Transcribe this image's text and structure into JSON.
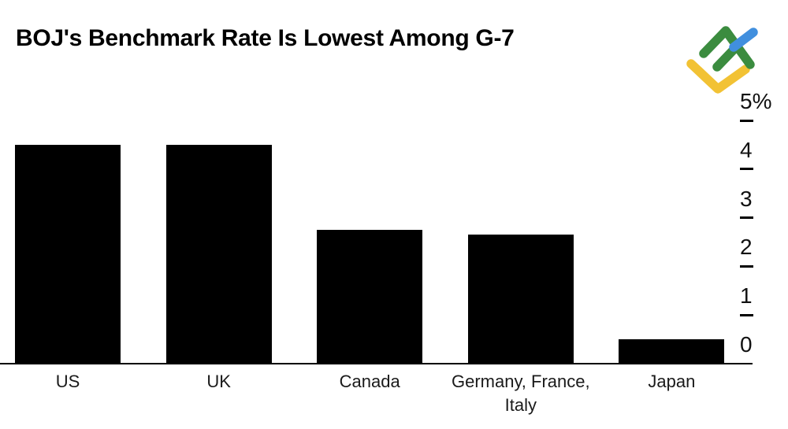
{
  "header": {
    "title": "BOJ's Benchmark Rate Is Lowest Among G-7"
  },
  "logo": {
    "label": "LiteFinance logo",
    "colors": {
      "green": "#3B8C3F",
      "blue": "#418FDE",
      "yellow": "#F2C234"
    }
  },
  "chart_data": {
    "type": "bar",
    "title": "BOJ's Benchmark Rate Is Lowest Among G-7",
    "categories": [
      "US",
      "UK",
      "Canada",
      "Germany, France, Italy",
      "Japan"
    ],
    "category_lines": [
      [
        "US"
      ],
      [
        "UK"
      ],
      [
        "Canada"
      ],
      [
        "Germany, France,",
        "Italy"
      ],
      [
        "Japan"
      ]
    ],
    "values": [
      4.5,
      4.5,
      2.75,
      2.65,
      0.5
    ],
    "value_unit": "percent",
    "xlabel": "",
    "ylabel": "",
    "ylim": [
      0,
      5
    ],
    "yticks": [
      0,
      1,
      2,
      3,
      4,
      5
    ],
    "ytick_labels": [
      "0",
      "1",
      "2",
      "3",
      "4",
      "5%"
    ],
    "axis_side": "right",
    "grid": false,
    "legend": "none",
    "bar_color": "#000000",
    "axis_color": "#000000",
    "text_color": "#1a1a1a"
  }
}
